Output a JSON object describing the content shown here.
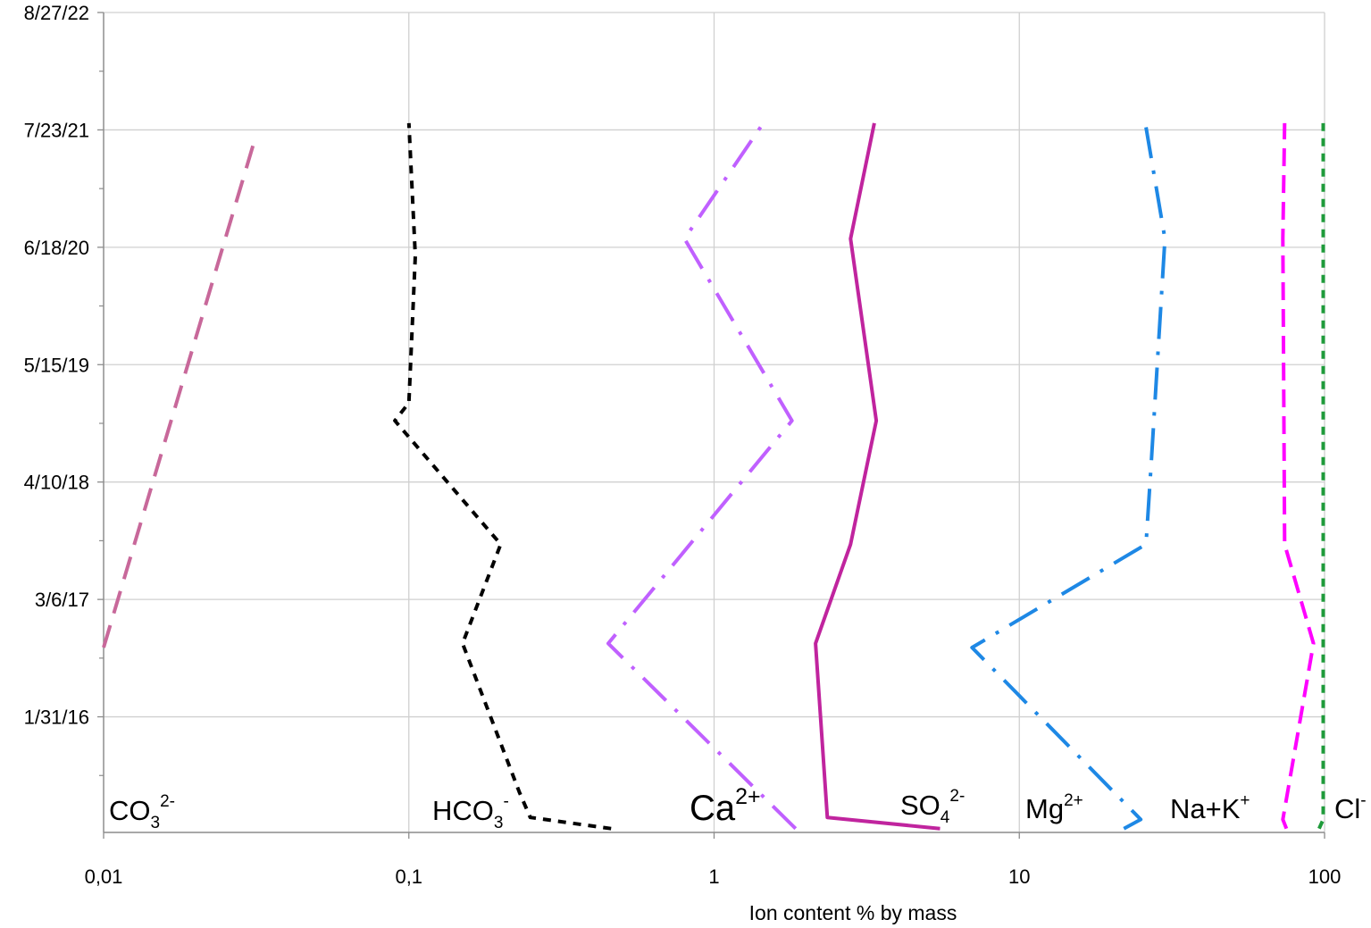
{
  "chart_data": {
    "type": "line",
    "title": "",
    "xlabel": "Ion content % by mass",
    "ylabel": "",
    "x_scale": "log",
    "xlim": [
      0.01,
      100
    ],
    "x_ticks": [
      {
        "value": 0.01,
        "label": "0,01"
      },
      {
        "value": 0.1,
        "label": "0,1"
      },
      {
        "value": 1,
        "label": "1"
      },
      {
        "value": 10,
        "label": "10"
      },
      {
        "value": 100,
        "label": "100"
      }
    ],
    "ylim": [
      "2015-01-02",
      "2022-08-27"
    ],
    "y_ticks": [
      {
        "value": "2016-01-31",
        "label": "1/31/16"
      },
      {
        "value": "2017-03-06",
        "label": "3/6/17"
      },
      {
        "value": "2018-04-10",
        "label": "4/10/18"
      },
      {
        "value": "2019-05-15",
        "label": "5/15/19"
      },
      {
        "value": "2020-06-18",
        "label": "6/18/20"
      },
      {
        "value": "2021-07-23",
        "label": "7/23/21"
      },
      {
        "value": "2022-08-27",
        "label": "8/27/22"
      }
    ],
    "grid": true,
    "series": [
      {
        "name": "CO32-",
        "color": "#c8689a",
        "dash": "long-dash",
        "points": [
          {
            "x": 0.01,
            "y": "2016-09-23"
          },
          {
            "x": 0.031,
            "y": "2021-06-06"
          }
        ]
      },
      {
        "name": "HCO3-",
        "color": "#000000",
        "dash": "short-dash",
        "points": [
          {
            "x": 0.46,
            "y": "2015-01-15"
          },
          {
            "x": 0.25,
            "y": "2015-02-22"
          },
          {
            "x": 0.23,
            "y": "2015-05-20"
          },
          {
            "x": 0.15,
            "y": "2016-10-07"
          },
          {
            "x": 0.2,
            "y": "2017-09-10"
          },
          {
            "x": 0.09,
            "y": "2018-11-05"
          },
          {
            "x": 0.1,
            "y": "2019-01-05"
          },
          {
            "x": 0.105,
            "y": "2020-05-20"
          },
          {
            "x": 0.1,
            "y": "2021-08-15"
          }
        ]
      },
      {
        "name": "Ca2+",
        "color": "#c060ff",
        "dash": "dash-dot",
        "points": [
          {
            "x": 1.85,
            "y": "2015-01-15"
          },
          {
            "x": 0.45,
            "y": "2016-10-07"
          },
          {
            "x": 1.8,
            "y": "2018-11-05"
          },
          {
            "x": 0.8,
            "y": "2020-07-17"
          },
          {
            "x": 1.45,
            "y": "2021-08-15"
          }
        ]
      },
      {
        "name": "SO42-",
        "color": "#c0249e",
        "dash": "solid",
        "points": [
          {
            "x": 5.5,
            "y": "2015-01-15"
          },
          {
            "x": 2.35,
            "y": "2015-02-22"
          },
          {
            "x": 2.15,
            "y": "2016-10-07"
          },
          {
            "x": 2.8,
            "y": "2017-09-10"
          },
          {
            "x": 3.4,
            "y": "2018-11-05"
          },
          {
            "x": 2.8,
            "y": "2020-07-17"
          },
          {
            "x": 3.35,
            "y": "2021-08-15"
          }
        ]
      },
      {
        "name": "Mg2+",
        "color": "#1e88e5",
        "dash": "dash-dot",
        "points": [
          {
            "x": 22,
            "y": "2015-01-15"
          },
          {
            "x": 25,
            "y": "2015-02-15"
          },
          {
            "x": 7,
            "y": "2016-09-23"
          },
          {
            "x": 26,
            "y": "2017-09-10"
          },
          {
            "x": 27,
            "y": "2018-06-01"
          },
          {
            "x": 30,
            "y": "2020-07-17"
          },
          {
            "x": 26,
            "y": "2021-08-01"
          }
        ]
      },
      {
        "name": "Na+K+",
        "color": "#ff00ff",
        "dash": "medium-dash",
        "points": [
          {
            "x": 75,
            "y": "2015-01-15"
          },
          {
            "x": 73,
            "y": "2015-02-15"
          },
          {
            "x": 92,
            "y": "2016-10-07"
          },
          {
            "x": 74,
            "y": "2017-09-10"
          },
          {
            "x": 73,
            "y": "2020-07-17"
          },
          {
            "x": 74,
            "y": "2021-08-15"
          }
        ]
      },
      {
        "name": "Cl-",
        "color": "#1e9a3a",
        "dash": "short-dash",
        "points": [
          {
            "x": 96,
            "y": "2015-01-15"
          },
          {
            "x": 99,
            "y": "2015-02-15"
          },
          {
            "x": 99,
            "y": "2021-08-15"
          }
        ]
      }
    ],
    "ion_labels": [
      {
        "id": "co3",
        "base": "CO",
        "sub": "3",
        "sup": "2-",
        "size": "normal"
      },
      {
        "id": "hco3",
        "base": "HCO",
        "sub": "3",
        "sup": "-",
        "size": "normal"
      },
      {
        "id": "ca",
        "base": "Ca",
        "sub": "",
        "sup": "2+",
        "size": "large"
      },
      {
        "id": "so4",
        "base": "SO",
        "sub": "4",
        "sup": "2-",
        "size": "normal"
      },
      {
        "id": "mg",
        "base": "Mg",
        "sub": "",
        "sup": "2+",
        "size": "normal"
      },
      {
        "id": "nak",
        "base": "Na+K",
        "sub": "",
        "sup": "+",
        "size": "normal"
      },
      {
        "id": "cl",
        "base": "Cl",
        "sub": "",
        "sup": "-",
        "size": "normal"
      }
    ]
  }
}
